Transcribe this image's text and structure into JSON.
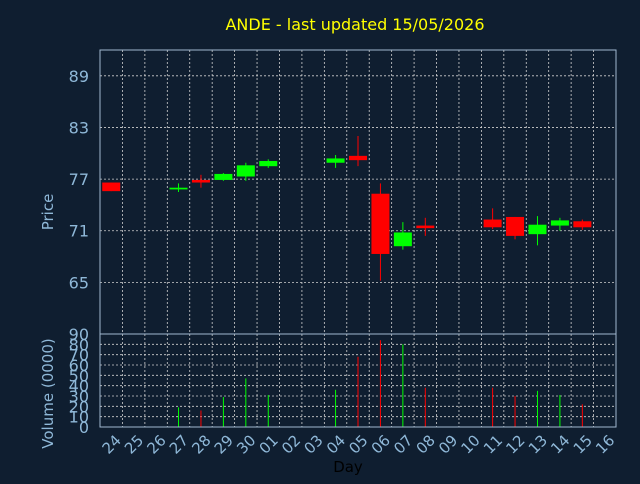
{
  "chart_data": [
    {
      "type": "candlestick",
      "title": "ANDE - last updated 15/05/2026",
      "ylabel": "Price",
      "ylim": [
        59,
        92
      ],
      "yticks": [
        65,
        71,
        77,
        83,
        89
      ],
      "grid": true,
      "colors": {
        "up": "#00ff00",
        "down": "#ff0000",
        "title": "#ffff00",
        "axis_text": "#8fb8d8",
        "grid": "#d0d0d0",
        "frame": "#a0b8d0",
        "background": "#0f1e30"
      },
      "x": [
        "24",
        "25",
        "26",
        "27",
        "28",
        "29",
        "30",
        "01",
        "02",
        "03",
        "04",
        "05",
        "06",
        "07",
        "08",
        "09",
        "10",
        "11",
        "12",
        "13",
        "14",
        "15",
        "16"
      ],
      "candles": [
        {
          "x": "24",
          "open": 76.6,
          "high": 76.6,
          "low": 75.6,
          "close": 75.6
        },
        {
          "x": "27",
          "open": 75.8,
          "high": 76.5,
          "low": 75.5,
          "close": 76.0
        },
        {
          "x": "28",
          "open": 76.9,
          "high": 77.5,
          "low": 76.0,
          "close": 76.6
        },
        {
          "x": "29",
          "open": 76.9,
          "high": 77.7,
          "low": 76.8,
          "close": 77.6
        },
        {
          "x": "30",
          "open": 77.3,
          "high": 78.9,
          "low": 76.8,
          "close": 78.6
        },
        {
          "x": "01",
          "open": 78.5,
          "high": 79.3,
          "low": 78.3,
          "close": 79.1
        },
        {
          "x": "04",
          "open": 78.9,
          "high": 79.8,
          "low": 78.3,
          "close": 79.4
        },
        {
          "x": "05",
          "open": 79.7,
          "high": 82.0,
          "low": 78.5,
          "close": 79.2
        },
        {
          "x": "06",
          "open": 75.3,
          "high": 76.5,
          "low": 65.2,
          "close": 68.3
        },
        {
          "x": "07",
          "open": 69.2,
          "high": 72.0,
          "low": 68.8,
          "close": 70.8
        },
        {
          "x": "08",
          "open": 71.6,
          "high": 72.5,
          "low": 70.4,
          "close": 71.3
        },
        {
          "x": "11",
          "open": 72.3,
          "high": 73.6,
          "low": 71.2,
          "close": 71.4
        },
        {
          "x": "12",
          "open": 72.6,
          "high": 72.6,
          "low": 70.0,
          "close": 70.4
        },
        {
          "x": "13",
          "open": 70.6,
          "high": 72.7,
          "low": 69.3,
          "close": 71.7
        },
        {
          "x": "14",
          "open": 71.6,
          "high": 72.5,
          "low": 71.0,
          "close": 72.2
        },
        {
          "x": "15",
          "open": 72.1,
          "high": 72.3,
          "low": 71.1,
          "close": 71.4
        }
      ]
    },
    {
      "type": "bar",
      "ylabel": "Volume (0000)",
      "xlabel": "Day",
      "ylim": [
        0,
        90
      ],
      "yticks": [
        0,
        10,
        20,
        30,
        40,
        50,
        60,
        70,
        80,
        90
      ],
      "grid": true,
      "x": [
        "24",
        "25",
        "26",
        "27",
        "28",
        "29",
        "30",
        "01",
        "02",
        "03",
        "04",
        "05",
        "06",
        "07",
        "08",
        "09",
        "10",
        "11",
        "12",
        "13",
        "14",
        "15",
        "16"
      ],
      "bars": [
        {
          "x": "27",
          "value": 19,
          "dir": "up"
        },
        {
          "x": "28",
          "value": 16,
          "dir": "down"
        },
        {
          "x": "29",
          "value": 29,
          "dir": "up"
        },
        {
          "x": "30",
          "value": 47,
          "dir": "up"
        },
        {
          "x": "01",
          "value": 31,
          "dir": "up"
        },
        {
          "x": "04",
          "value": 36,
          "dir": "up"
        },
        {
          "x": "05",
          "value": 68,
          "dir": "down"
        },
        {
          "x": "06",
          "value": 84,
          "dir": "down"
        },
        {
          "x": "07",
          "value": 80,
          "dir": "up"
        },
        {
          "x": "08",
          "value": 38,
          "dir": "down"
        },
        {
          "x": "11",
          "value": 38,
          "dir": "down"
        },
        {
          "x": "12",
          "value": 30,
          "dir": "down"
        },
        {
          "x": "13",
          "value": 35,
          "dir": "up"
        },
        {
          "x": "14",
          "value": 31,
          "dir": "up"
        },
        {
          "x": "15",
          "value": 22,
          "dir": "down"
        }
      ]
    }
  ]
}
